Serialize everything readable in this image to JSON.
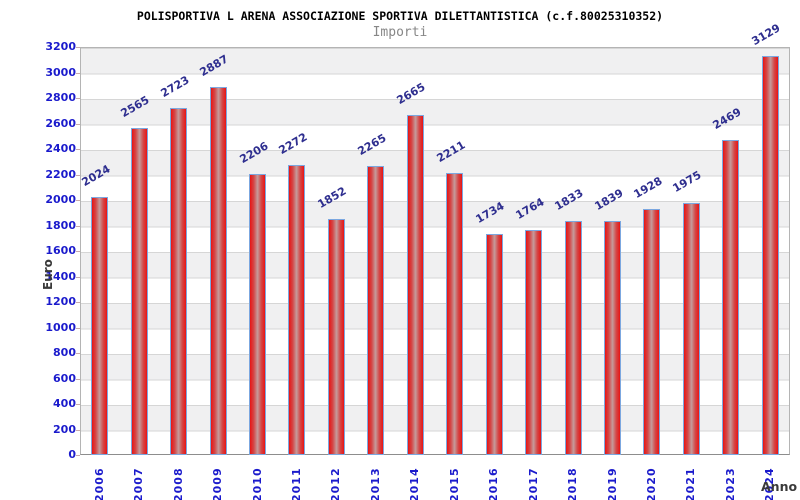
{
  "header": {
    "title": "POLISPORTIVA L ARENA ASSOCIAZIONE SPORTIVA DILETTANTISTICA (c.f.80025310352)",
    "subtitle": "Importi"
  },
  "chart_data": {
    "type": "bar",
    "title": "POLISPORTIVA L ARENA ASSOCIAZIONE SPORTIVA DILETTANTISTICA (c.f.80025310352)",
    "subtitle": "Importi",
    "xlabel": "Anno",
    "ylabel": "Euro",
    "categories": [
      "2006",
      "2007",
      "2008",
      "2009",
      "2010",
      "2011",
      "2012",
      "2013",
      "2014",
      "2015",
      "2016",
      "2017",
      "2018",
      "2019",
      "2020",
      "2021",
      "2023",
      "2024"
    ],
    "values": [
      2024,
      2565,
      2723,
      2887,
      2206,
      2272,
      1852,
      2265,
      2665,
      2211,
      1734,
      1764,
      1833,
      1839,
      1928,
      1975,
      2469,
      3129
    ],
    "ylim": [
      0,
      3200
    ],
    "ytick_step": 200,
    "grid": "horizontal-bands",
    "legend": "none",
    "bar_value_labels_rotated": true,
    "colors": {
      "bar_edge": "#e81414",
      "bar_center": "#c59c9c",
      "bar_border": "#7ba7e0",
      "tick_label": "#1a1acc",
      "value_label": "#2e2e8f",
      "axis_title": "#3a3a3a",
      "band_gray": "#f0f0f1",
      "band_white": "#ffffff",
      "grid_line": "#d6d6d6"
    }
  }
}
